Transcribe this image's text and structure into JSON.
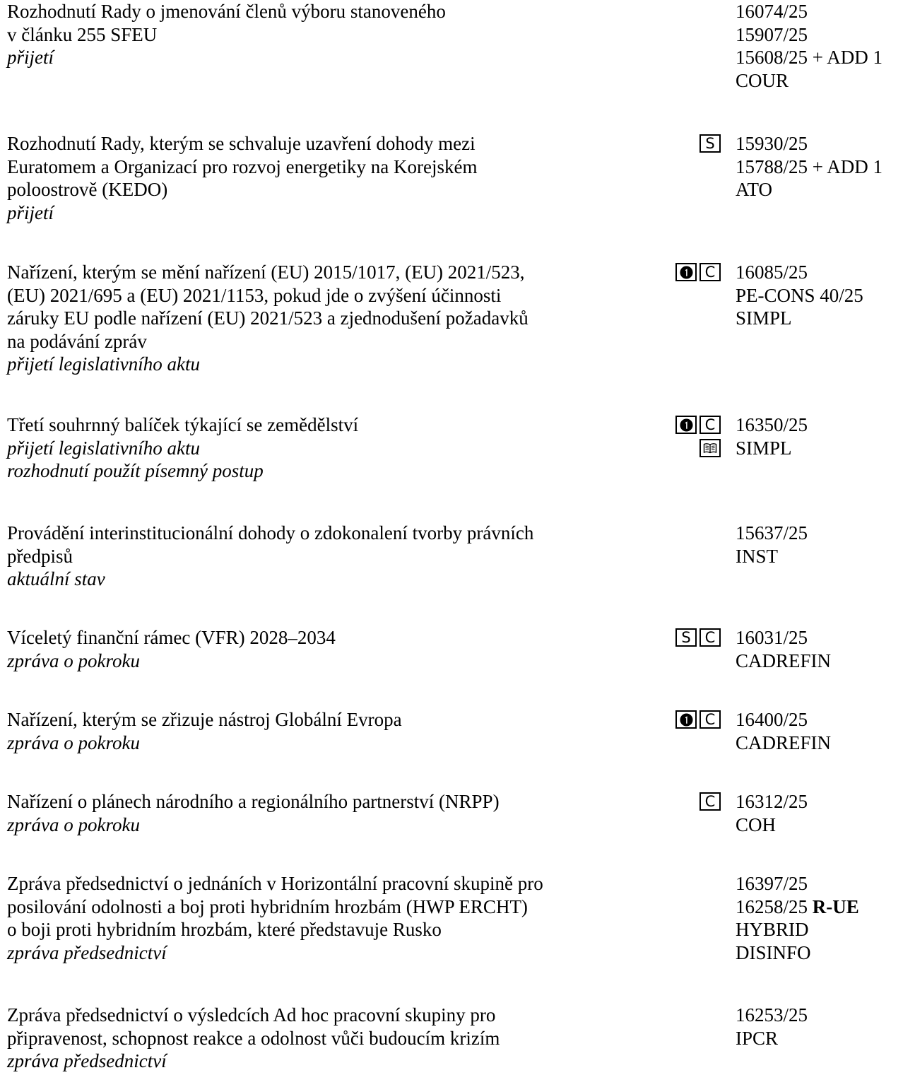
{
  "items": [
    {
      "title": [
        "Rozhodnutí Rady o jmenování členů výboru stanoveného",
        "v článku 255 SFEU"
      ],
      "notes": [
        "přijetí"
      ],
      "codes": [
        "16074/25",
        "15907/25",
        "15608/25 + ADD 1",
        "COUR"
      ],
      "marks": []
    },
    {
      "title": [
        "Rozhodnutí Rady, kterým se schvaluje uzavření dohody mezi",
        "Euratomem a Organizací pro rozvoj energetiky na Korejském",
        "poloostrově (KEDO)"
      ],
      "notes": [
        "přijetí"
      ],
      "codes": [
        "15930/25",
        "15788/25 + ADD 1",
        "ATO"
      ],
      "marks": [
        [
          "S"
        ]
      ]
    },
    {
      "title": [
        "Nařízení, kterým se mění nařízení (EU) 2015/1017, (EU) 2021/523,",
        "(EU) 2021/695 a (EU) 2021/1153, pokud jde o zvýšení účinnosti",
        "záruky EU podle nařízení (EU) 2021/523 a zjednodušení požadavků",
        "na podávání zpráv"
      ],
      "notes": [
        "přijetí legislativního aktu"
      ],
      "codes": [
        "16085/25",
        "PE-CONS 40/25",
        "SIMPL"
      ],
      "marks": [
        [
          "1",
          "C"
        ]
      ]
    },
    {
      "title": [
        "Třetí souhrnný balíček týkající se zemědělství"
      ],
      "notes": [
        "přijetí legislativního aktu",
        "rozhodnutí použít písemný postup"
      ],
      "codes": [
        "16350/25",
        "SIMPL"
      ],
      "marks": [
        [
          "1",
          "C"
        ],
        [
          "book"
        ]
      ]
    },
    {
      "title": [
        "Provádění interinstitucionální dohody o zdokonalení tvorby právních",
        "předpisů"
      ],
      "notes": [
        "aktuální stav"
      ],
      "codes": [
        "15637/25",
        "INST"
      ],
      "marks": []
    },
    {
      "title": [
        "Víceletý finanční rámec (VFR) 2028–2034"
      ],
      "notes": [
        "zpráva o pokroku"
      ],
      "codes": [
        "16031/25",
        "CADREFIN"
      ],
      "marks": [
        [
          "S",
          "C"
        ]
      ]
    },
    {
      "title": [
        "Nařízení, kterým se zřizuje nástroj Globální Evropa"
      ],
      "notes": [
        "zpráva o pokroku"
      ],
      "codes": [
        "16400/25",
        "CADREFIN"
      ],
      "marks": [
        [
          "1",
          "C"
        ]
      ]
    },
    {
      "title": [
        "Nařízení o plánech národního a regionálního partnerství (NRPP)"
      ],
      "notes": [
        "zpráva o pokroku"
      ],
      "codes": [
        "16312/25",
        "COH"
      ],
      "marks": [
        [
          "C"
        ]
      ]
    },
    {
      "title": [
        "Zpráva předsednictví o jednáních v Horizontální pracovní skupině pro",
        "posilování odolnosti a boj proti hybridním hrozbám (HWP ERCHT)",
        "o boji proti hybridním hrozbám, které představuje Rusko"
      ],
      "notes": [
        "zpráva předsednictví"
      ],
      "codes": [
        "16397/25",
        "16258/25",
        "HYBRID",
        "DISINFO"
      ],
      "code_suffix": {
        "1": "R-UE"
      },
      "marks": []
    },
    {
      "title": [
        "Zpráva předsednictví o výsledcích Ad hoc pracovní skupiny pro",
        "připravenost, schopnost reakce a odolnost vůči budoucím krizím"
      ],
      "notes": [
        "zpráva předsednictví"
      ],
      "codes": [
        "16253/25",
        "IPCR"
      ],
      "marks": []
    }
  ]
}
